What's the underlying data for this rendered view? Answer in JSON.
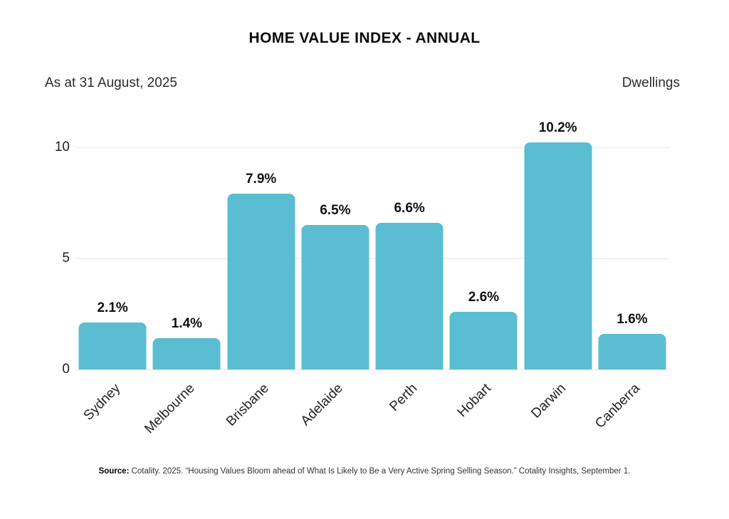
{
  "header": {
    "title": "HOME VALUE INDEX - ANNUAL",
    "as_at": "As at 31 August, 2025",
    "series_note": "Dwellings"
  },
  "chart_data": {
    "type": "bar",
    "title": "HOME VALUE INDEX - ANNUAL",
    "subtitle": "As at 31 August, 2025",
    "series_name": "Dwellings",
    "categories": [
      "Sydney",
      "Melbourne",
      "Brisbane",
      "Adelaide",
      "Perth",
      "Hobart",
      "Darwin",
      "Canberra"
    ],
    "values": [
      2.1,
      1.4,
      7.9,
      6.5,
      6.6,
      2.6,
      10.2,
      1.6
    ],
    "value_labels": [
      "2.1%",
      "1.4%",
      "7.9%",
      "6.5%",
      "6.6%",
      "2.6%",
      "10.2%",
      "1.6%"
    ],
    "xlabel": "",
    "ylabel": "",
    "ylim": [
      0,
      11.2
    ],
    "yticks": [
      0,
      5,
      10
    ],
    "grid": true,
    "legend": "none",
    "bar_color": "#5BBDD1",
    "gridline_color": "#E6E6E6",
    "label_rotation_deg": -45
  },
  "footer": {
    "source_label": "Source:",
    "source_text": " Cotality. 2025. “Housing Values Bloom ahead of What Is Likely to Be a Very Active Spring Selling Season.” Cotality Insights, September 1."
  }
}
